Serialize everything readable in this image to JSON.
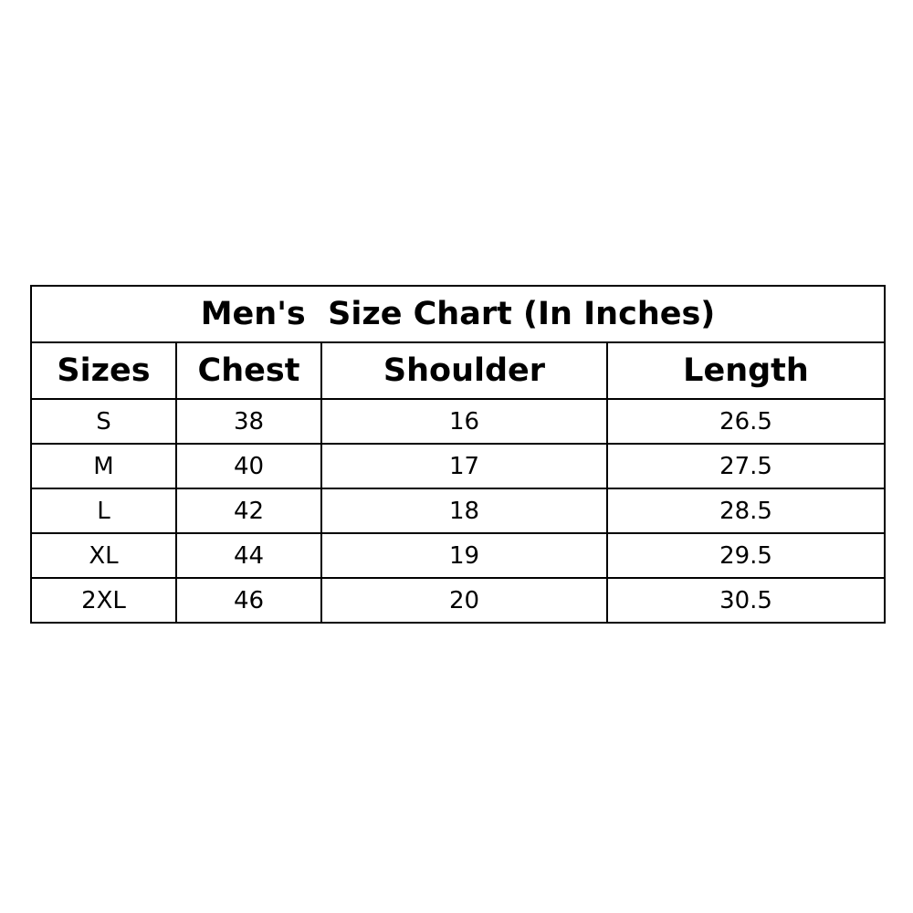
{
  "chart_data": {
    "type": "table",
    "title": "Men's  Size Chart (In Inches)",
    "columns": [
      "Sizes",
      "Chest",
      "Shoulder",
      "Length"
    ],
    "rows": [
      [
        "S",
        "38",
        "16",
        "26.5"
      ],
      [
        "M",
        "40",
        "17",
        "27.5"
      ],
      [
        "L",
        "42",
        "18",
        "28.5"
      ],
      [
        "XL",
        "44",
        "19",
        "29.5"
      ],
      [
        "2XL",
        "46",
        "20",
        "30.5"
      ]
    ]
  }
}
